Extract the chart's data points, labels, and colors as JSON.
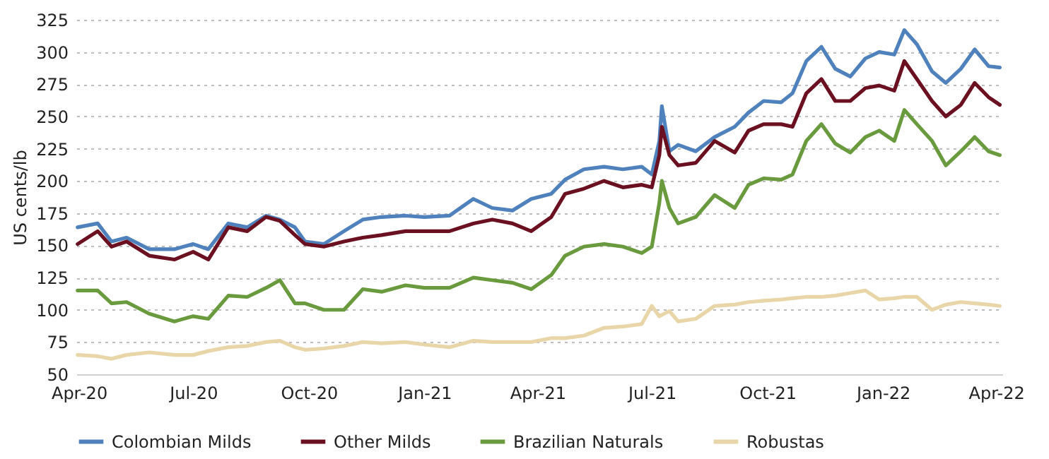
{
  "chart_data": {
    "type": "line",
    "ylabel": "US cents/lb",
    "ylim": [
      50,
      325
    ],
    "yticks": [
      50,
      75,
      100,
      125,
      150,
      175,
      200,
      225,
      250,
      275,
      300,
      325
    ],
    "grid": "y",
    "legend": "bottom",
    "xlim": [
      "2020-03-30",
      "2022-04-06"
    ],
    "xticks": [
      {
        "value": "2020-04-01",
        "label": "Apr-20"
      },
      {
        "value": "2020-07-01",
        "label": "Jul-20"
      },
      {
        "value": "2020-10-01",
        "label": "Oct-20"
      },
      {
        "value": "2021-01-01",
        "label": "Jan-21"
      },
      {
        "value": "2021-04-01",
        "label": "Apr-21"
      },
      {
        "value": "2021-07-01",
        "label": "Jul-21"
      },
      {
        "value": "2021-10-01",
        "label": "Oct-21"
      },
      {
        "value": "2022-01-01",
        "label": "Jan-22"
      },
      {
        "value": "2022-04-01",
        "label": "Apr-22"
      }
    ],
    "x": [
      "2020-03-31",
      "2020-04-16",
      "2020-04-27",
      "2020-05-09",
      "2020-05-27",
      "2020-06-16",
      "2020-07-01",
      "2020-07-13",
      "2020-07-29",
      "2020-08-13",
      "2020-08-28",
      "2020-09-08",
      "2020-09-20",
      "2020-09-28",
      "2020-10-13",
      "2020-10-29",
      "2020-11-13",
      "2020-11-28",
      "2020-12-17",
      "2021-01-01",
      "2021-01-21",
      "2021-02-09",
      "2021-02-24",
      "2021-03-12",
      "2021-03-27",
      "2021-04-12",
      "2021-04-23",
      "2021-05-08",
      "2021-05-24",
      "2021-06-08",
      "2021-06-23",
      "2021-07-01",
      "2021-07-07",
      "2021-07-09",
      "2021-07-15",
      "2021-07-22",
      "2021-08-05",
      "2021-08-20",
      "2021-09-05",
      "2021-09-16",
      "2021-09-28",
      "2021-10-12",
      "2021-10-21",
      "2021-11-01",
      "2021-11-13",
      "2021-11-24",
      "2021-12-06",
      "2021-12-18",
      "2021-12-29",
      "2022-01-10",
      "2022-01-18",
      "2022-01-28",
      "2022-02-09",
      "2022-02-20",
      "2022-03-04",
      "2022-03-15",
      "2022-03-26",
      "2022-04-04"
    ],
    "series": [
      {
        "name": "Colombian Milds",
        "color": "#4f81bd",
        "values": [
          164,
          167,
          153,
          156,
          147,
          147,
          151,
          147,
          167,
          164,
          173,
          170,
          164,
          153,
          151,
          161,
          170,
          172,
          173,
          172,
          173,
          186,
          179,
          177,
          186,
          190,
          201,
          209,
          211,
          209,
          211,
          205,
          231,
          258,
          223,
          228,
          223,
          234,
          242,
          253,
          262,
          261,
          268,
          293,
          304,
          287,
          281,
          295,
          300,
          298,
          317,
          306,
          285,
          276,
          287,
          302,
          289,
          288
        ]
      },
      {
        "name": "Other Milds",
        "color": "#6b1020",
        "values": [
          151,
          161,
          149,
          153,
          142,
          139,
          145,
          139,
          164,
          161,
          172,
          169,
          158,
          151,
          149,
          153,
          156,
          158,
          161,
          161,
          161,
          167,
          170,
          167,
          161,
          172,
          190,
          194,
          200,
          195,
          197,
          195,
          220,
          242,
          220,
          212,
          214,
          231,
          222,
          239,
          244,
          244,
          242,
          268,
          279,
          262,
          262,
          272,
          274,
          270,
          293,
          279,
          262,
          250,
          259,
          276,
          265,
          259
        ]
      },
      {
        "name": "Brazilian Naturals",
        "color": "#6a9a3e",
        "values": [
          115,
          115,
          105,
          106,
          97,
          91,
          95,
          93,
          111,
          110,
          117,
          123,
          105,
          105,
          100,
          100,
          116,
          114,
          119,
          117,
          117,
          125,
          123,
          121,
          116,
          127,
          142,
          149,
          151,
          149,
          144,
          149,
          183,
          200,
          179,
          167,
          172,
          189,
          179,
          197,
          202,
          201,
          205,
          231,
          244,
          229,
          222,
          234,
          239,
          231,
          255,
          244,
          231,
          212,
          223,
          234,
          223,
          220
        ]
      },
      {
        "name": "Robustas",
        "color": "#e8d5a8",
        "values": [
          65,
          64,
          62,
          65,
          67,
          65,
          65,
          68,
          71,
          72,
          75,
          76,
          71,
          69,
          70,
          72,
          75,
          74,
          75,
          73,
          71,
          76,
          75,
          75,
          75,
          78,
          78,
          80,
          86,
          87,
          89,
          103,
          95,
          96,
          99,
          91,
          93,
          103,
          104,
          106,
          107,
          108,
          109,
          110,
          110,
          111,
          113,
          115,
          108,
          109,
          110,
          110,
          100,
          104,
          106,
          105,
          104,
          103
        ]
      }
    ]
  }
}
